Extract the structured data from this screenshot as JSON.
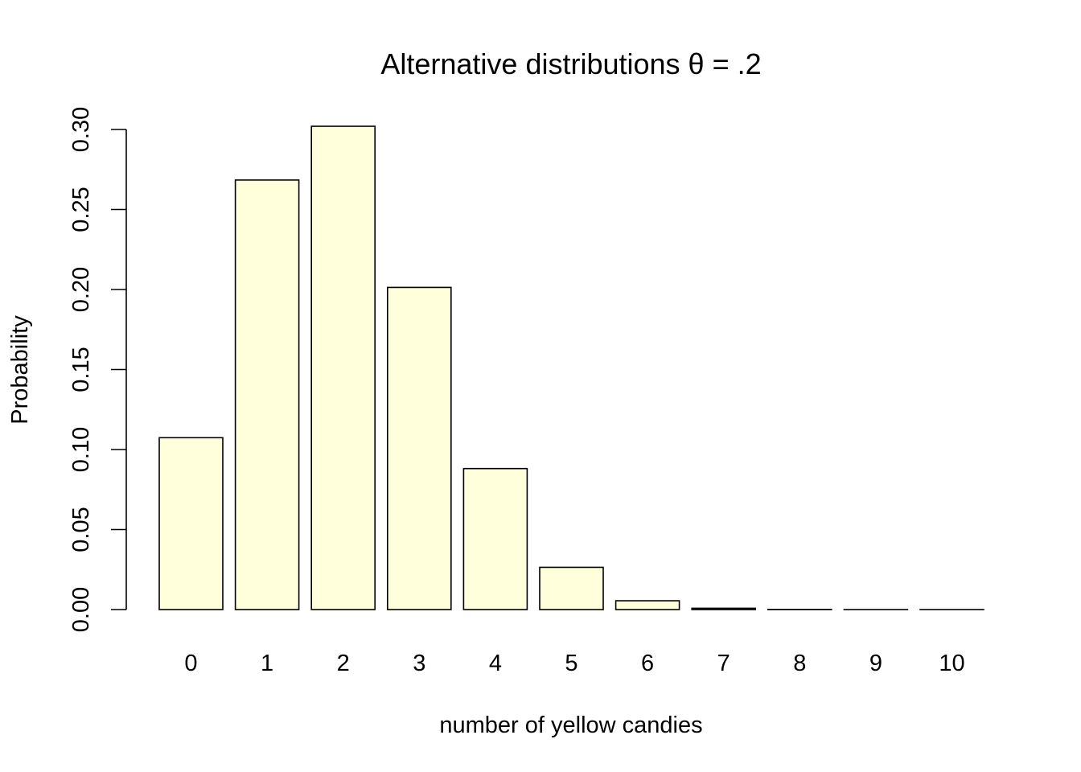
{
  "chart_data": {
    "type": "bar",
    "title": "Alternative distributions θ = .2",
    "xlabel": "number of yellow candies",
    "ylabel": "Probability",
    "categories": [
      "0",
      "1",
      "2",
      "3",
      "4",
      "5",
      "6",
      "7",
      "8",
      "9",
      "10"
    ],
    "values": [
      0.1074,
      0.2684,
      0.302,
      0.2013,
      0.0881,
      0.0264,
      0.0055,
      0.0008,
      0.0001,
      0.0,
      0.0
    ],
    "ylim": [
      0,
      0.3
    ],
    "yticks": [
      0.0,
      0.05,
      0.1,
      0.15,
      0.2,
      0.25,
      0.3
    ],
    "ytick_labels": [
      "0.00",
      "0.05",
      "0.10",
      "0.15",
      "0.20",
      "0.25",
      "0.30"
    ],
    "grid": false,
    "legend": "none",
    "bar_color": "#ffffdc",
    "edge_color": "#000000"
  }
}
